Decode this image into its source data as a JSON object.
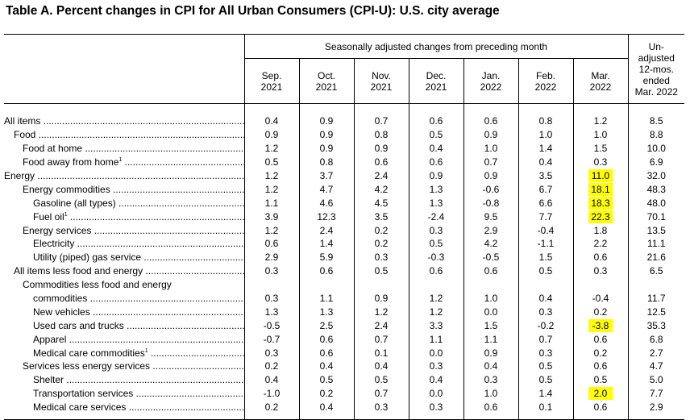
{
  "title": "Table A. Percent changes in CPI for All Urban Consumers (CPI-U): U.S. city average",
  "header": {
    "span_label": "Seasonally adjusted changes from preceding month",
    "unadjusted_label": [
      "Un-",
      "adjusted",
      "12-mos.",
      "ended",
      "Mar. 2022"
    ],
    "months": [
      [
        "Sep.",
        "2021"
      ],
      [
        "Oct.",
        "2021"
      ],
      [
        "Nov.",
        "2021"
      ],
      [
        "Dec.",
        "2021"
      ],
      [
        "Jan.",
        "2022"
      ],
      [
        "Feb.",
        "2022"
      ],
      [
        "Mar.",
        "2022"
      ]
    ]
  },
  "highlight_color": "#ffff00",
  "rows": [
    {
      "label": "All items",
      "indent": 0,
      "values": [
        "0.4",
        "0.9",
        "0.7",
        "0.6",
        "0.6",
        "0.8",
        "1.2",
        "8.5"
      ],
      "highlight": false
    },
    {
      "label": "Food",
      "indent": 1,
      "values": [
        "0.9",
        "0.9",
        "0.8",
        "0.5",
        "0.9",
        "1.0",
        "1.0",
        "8.8"
      ],
      "highlight": false
    },
    {
      "label": "Food at home",
      "indent": 2,
      "values": [
        "1.2",
        "0.9",
        "0.9",
        "0.4",
        "1.0",
        "1.4",
        "1.5",
        "10.0"
      ],
      "highlight": false
    },
    {
      "label": "Food away from home",
      "sup": "1",
      "indent": 2,
      "values": [
        "0.5",
        "0.8",
        "0.6",
        "0.6",
        "0.7",
        "0.4",
        "0.3",
        "6.9"
      ],
      "highlight": false
    },
    {
      "label": "Energy",
      "indent": 0,
      "values": [
        "1.2",
        "3.7",
        "2.4",
        "0.9",
        "0.9",
        "3.5",
        "11.0",
        "32.0"
      ],
      "highlight": true
    },
    {
      "label": "Energy commodities",
      "indent": 2,
      "values": [
        "1.2",
        "4.7",
        "4.2",
        "1.3",
        "-0.6",
        "6.7",
        "18.1",
        "48.3"
      ],
      "highlight": true
    },
    {
      "label": "Gasoline (all types)",
      "indent": 3,
      "values": [
        "1.1",
        "4.6",
        "4.5",
        "1.3",
        "-0.8",
        "6.6",
        "18.3",
        "48.0"
      ],
      "highlight": true
    },
    {
      "label": "Fuel oil",
      "sup": "1",
      "indent": 3,
      "values": [
        "3.9",
        "12.3",
        "3.5",
        "-2.4",
        "9.5",
        "7.7",
        "22.3",
        "70.1"
      ],
      "highlight": true
    },
    {
      "label": "Energy services",
      "indent": 2,
      "values": [
        "1.2",
        "2.4",
        "0.2",
        "0.3",
        "2.9",
        "-0.4",
        "1.8",
        "13.5"
      ],
      "highlight": false
    },
    {
      "label": "Electricity",
      "indent": 3,
      "values": [
        "0.6",
        "1.4",
        "0.2",
        "0.5",
        "4.2",
        "-1.1",
        "2.2",
        "11.1"
      ],
      "highlight": false
    },
    {
      "label": "Utility (piped) gas service",
      "indent": 3,
      "values": [
        "2.9",
        "5.9",
        "0.3",
        "-0.3",
        "-0.5",
        "1.5",
        "0.6",
        "21.6"
      ],
      "highlight": false
    },
    {
      "label": "All items less food and energy",
      "indent": 1,
      "values": [
        "0.3",
        "0.6",
        "0.5",
        "0.6",
        "0.6",
        "0.5",
        "0.3",
        "6.5"
      ],
      "highlight": false
    },
    {
      "label_lines": [
        "Commodities less food and energy",
        "commodities"
      ],
      "indent": 2,
      "values": [
        "0.3",
        "1.1",
        "0.9",
        "1.2",
        "1.0",
        "0.4",
        "-0.4",
        "11.7"
      ],
      "highlight": false
    },
    {
      "label": "New vehicles",
      "indent": 3,
      "values": [
        "1.3",
        "1.3",
        "1.2",
        "1.2",
        "0.0",
        "0.3",
        "0.2",
        "12.5"
      ],
      "highlight": false
    },
    {
      "label": "Used cars and trucks",
      "indent": 3,
      "values": [
        "-0.5",
        "2.5",
        "2.4",
        "3.3",
        "1.5",
        "-0.2",
        "-3.8",
        "35.3"
      ],
      "highlight": true
    },
    {
      "label": "Apparel",
      "indent": 3,
      "values": [
        "-0.7",
        "0.6",
        "0.7",
        "1.1",
        "1.1",
        "0.7",
        "0.6",
        "6.8"
      ],
      "highlight": false
    },
    {
      "label": "Medical care commodities",
      "sup": "1",
      "indent": 3,
      "values": [
        "0.3",
        "0.6",
        "0.1",
        "0.0",
        "0.9",
        "0.3",
        "0.2",
        "2.7"
      ],
      "highlight": false
    },
    {
      "label": "Services less energy services",
      "indent": 2,
      "values": [
        "0.2",
        "0.4",
        "0.4",
        "0.3",
        "0.4",
        "0.5",
        "0.6",
        "4.7"
      ],
      "highlight": false
    },
    {
      "label": "Shelter",
      "indent": 3,
      "values": [
        "0.4",
        "0.5",
        "0.5",
        "0.4",
        "0.3",
        "0.5",
        "0.5",
        "5.0"
      ],
      "highlight": false
    },
    {
      "label": "Transportation services",
      "indent": 3,
      "values": [
        "-1.0",
        "0.2",
        "0.7",
        "0.0",
        "1.0",
        "1.4",
        "2.0",
        "7.7"
      ],
      "highlight": true
    },
    {
      "label": "Medical care services",
      "indent": 3,
      "values": [
        "0.2",
        "0.4",
        "0.3",
        "0.3",
        "0.6",
        "0.1",
        "0.6",
        "2.9"
      ],
      "highlight": false
    }
  ]
}
